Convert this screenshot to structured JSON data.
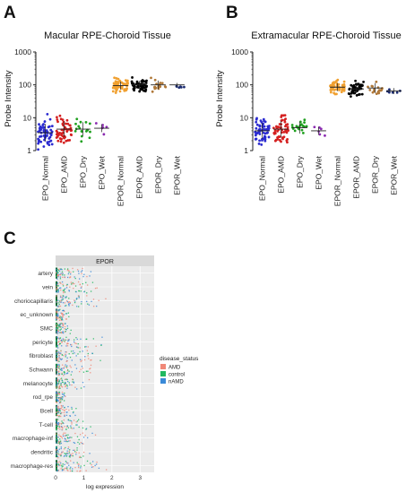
{
  "panels": {
    "a": "A",
    "b": "B",
    "c": "C"
  },
  "chart_data": [
    {
      "id": "A",
      "type": "scatter",
      "title": "Macular RPE-Choroid Tissue",
      "ylabel": "Probe Intensity",
      "yscale": "log",
      "ylim": [
        1,
        1000
      ],
      "yticks": [
        "1",
        "10",
        "100",
        "1000"
      ],
      "categories": [
        "EPO_Normal",
        "EPO_AMD",
        "EPO_Dry",
        "EPO_Wet",
        "EPOR_Normal",
        "EPOR_AMD",
        "EPOR_Dry",
        "EPOR_Wet"
      ],
      "colors": [
        "#2a2ad0",
        "#d42020",
        "#1fa01f",
        "#8a2ab0",
        "#f0a030",
        "#000000",
        "#b07838",
        "#1a2a70"
      ],
      "counts": [
        60,
        55,
        18,
        6,
        60,
        55,
        18,
        6
      ],
      "medians": [
        3.5,
        4.5,
        4.5,
        4.8,
        95,
        100,
        100,
        100
      ],
      "spread": [
        0.45,
        0.4,
        0.35,
        0.2,
        0.2,
        0.2,
        0.22,
        0.1
      ]
    },
    {
      "id": "B",
      "type": "scatter",
      "title": "Extramacular RPE-Choroid Tissue",
      "ylabel": "Probe Intensity",
      "yscale": "log",
      "ylim": [
        1,
        1000
      ],
      "yticks": [
        "1",
        "10",
        "100",
        "1000"
      ],
      "categories": [
        "EPO_Normal",
        "EPO_AMD",
        "EPO_Dry",
        "EPO_Wet",
        "EPOR_Normal",
        "EPOR_AMD",
        "EPOR_Dry",
        "EPOR_Wet"
      ],
      "colors": [
        "#2a2ad0",
        "#d42020",
        "#1fa01f",
        "#8a2ab0",
        "#f0a030",
        "#000000",
        "#b07838",
        "#1a2a70"
      ],
      "counts": [
        60,
        55,
        18,
        6,
        60,
        55,
        18,
        6
      ],
      "medians": [
        4,
        4.5,
        5,
        4,
        85,
        75,
        80,
        65
      ],
      "spread": [
        0.4,
        0.42,
        0.3,
        0.2,
        0.2,
        0.22,
        0.25,
        0.15
      ]
    },
    {
      "id": "C",
      "type": "scatter",
      "title": "EPOR",
      "xlabel": "log expression",
      "xlim": [
        0,
        3.5
      ],
      "xticks": [
        "0",
        "1",
        "2",
        "3"
      ],
      "categories": [
        "artery",
        "vein",
        "choriocapillaris",
        "ec_unknown",
        "SMC",
        "pericyte",
        "fibroblast",
        "Schwann",
        "melanocyte",
        "rod_rpe",
        "Bcell",
        "T-cell",
        "macrophage-inf",
        "dendritic",
        "macrophage-res"
      ],
      "spread_max": [
        1.3,
        1.4,
        1.5,
        0.4,
        0.5,
        1.5,
        1.3,
        1.2,
        1.0,
        0.3,
        0.6,
        1.2,
        1.2,
        1.0,
        1.5
      ],
      "legend": {
        "title": "disease_status",
        "items": [
          {
            "label": "AMD",
            "color": "#f08878"
          },
          {
            "label": "control",
            "color": "#20b860"
          },
          {
            "label": "nAMD",
            "color": "#3a8ad8"
          }
        ]
      }
    }
  ]
}
